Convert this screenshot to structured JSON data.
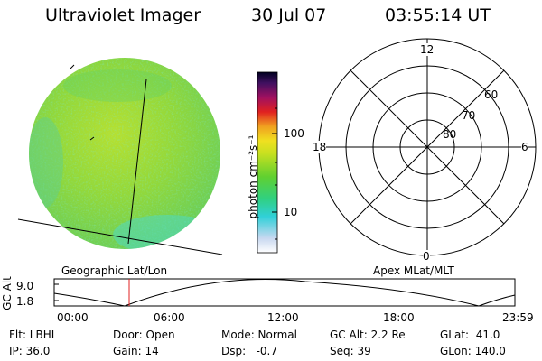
{
  "header": {
    "instrument": "Ultraviolet Imager",
    "date": "30 Jul 07",
    "time": "03:55:14 UT"
  },
  "colorbar": {
    "unit_label": "photon cm⁻²s⁻¹",
    "ticks": [
      "100",
      "10"
    ]
  },
  "polar_plot": {
    "mlt_labels": {
      "top": "12",
      "left": "18",
      "right": "6",
      "bottom": "0"
    },
    "lat_labels": [
      "60",
      "70",
      "80"
    ]
  },
  "panel_labels": {
    "geographic": "Geographic Lat/Lon",
    "apex": "Apex MLat/MLT"
  },
  "orbit_plot": {
    "ylabel": "GC Alt",
    "yticks": [
      "9.0",
      "1.8"
    ],
    "xticks": [
      "00:00",
      "06:00",
      "12:00",
      "18:00",
      "23:59"
    ]
  },
  "info": {
    "flt": "Flt: LBHL",
    "ip": "IP: 36.0",
    "door": "Door: Open",
    "gain": "Gain: 14",
    "mode": "Mode: Normal",
    "dsp": "Dsp:   -0.7",
    "gc_alt": "GC Alt: 2.2 Re",
    "seq": "Seq: 39",
    "glat": "GLat:  41.0",
    "glon": "GLon: 140.0"
  },
  "colors": {
    "image_base": "#8fd63a",
    "image_cyan": "#39d6c8",
    "marker_red": "#e02020"
  }
}
